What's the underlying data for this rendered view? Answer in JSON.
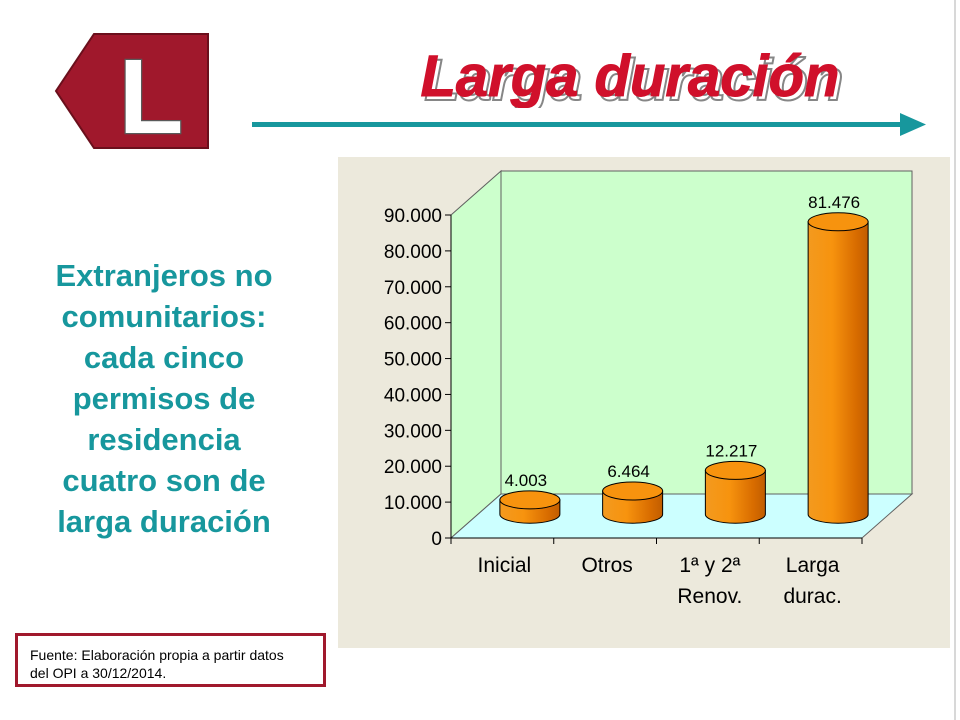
{
  "slide": {
    "badge_letter": "L",
    "title": "Larga duración",
    "side_text_lines": [
      "Extranjeros no",
      "comunitarios:",
      "cada cinco",
      "permisos de",
      "residencia",
      "cuatro son de",
      "larga duración"
    ],
    "source_lines": [
      "Fuente: Elaboración propia a partir datos",
      "del OPI a 30/12/2014."
    ]
  },
  "colors": {
    "brand_red": "#a0182c",
    "teal": "#17979d",
    "chart_bg": "#ece9dc",
    "plot_wall": "#ccffcc",
    "plot_floor": "#ccffff",
    "bar_orange": "#f7930e"
  },
  "chart_data": {
    "type": "bar",
    "categories": [
      [
        "Inicial"
      ],
      [
        "Otros"
      ],
      [
        "1ª y 2ª",
        "Renov."
      ],
      [
        "Larga",
        "durac."
      ]
    ],
    "values": [
      4003,
      6464,
      12217,
      81476
    ],
    "data_labels": [
      "4.003",
      "6.464",
      "12.217",
      "81.476"
    ],
    "y_ticks": [
      "0",
      "10.000",
      "20.000",
      "30.000",
      "40.000",
      "50.000",
      "60.000",
      "70.000",
      "80.000",
      "90.000"
    ],
    "ylim": [
      0,
      90000
    ],
    "grid": false,
    "legend": "none",
    "style": "3d-cylinder",
    "title": "",
    "xlabel": "",
    "ylabel": ""
  }
}
